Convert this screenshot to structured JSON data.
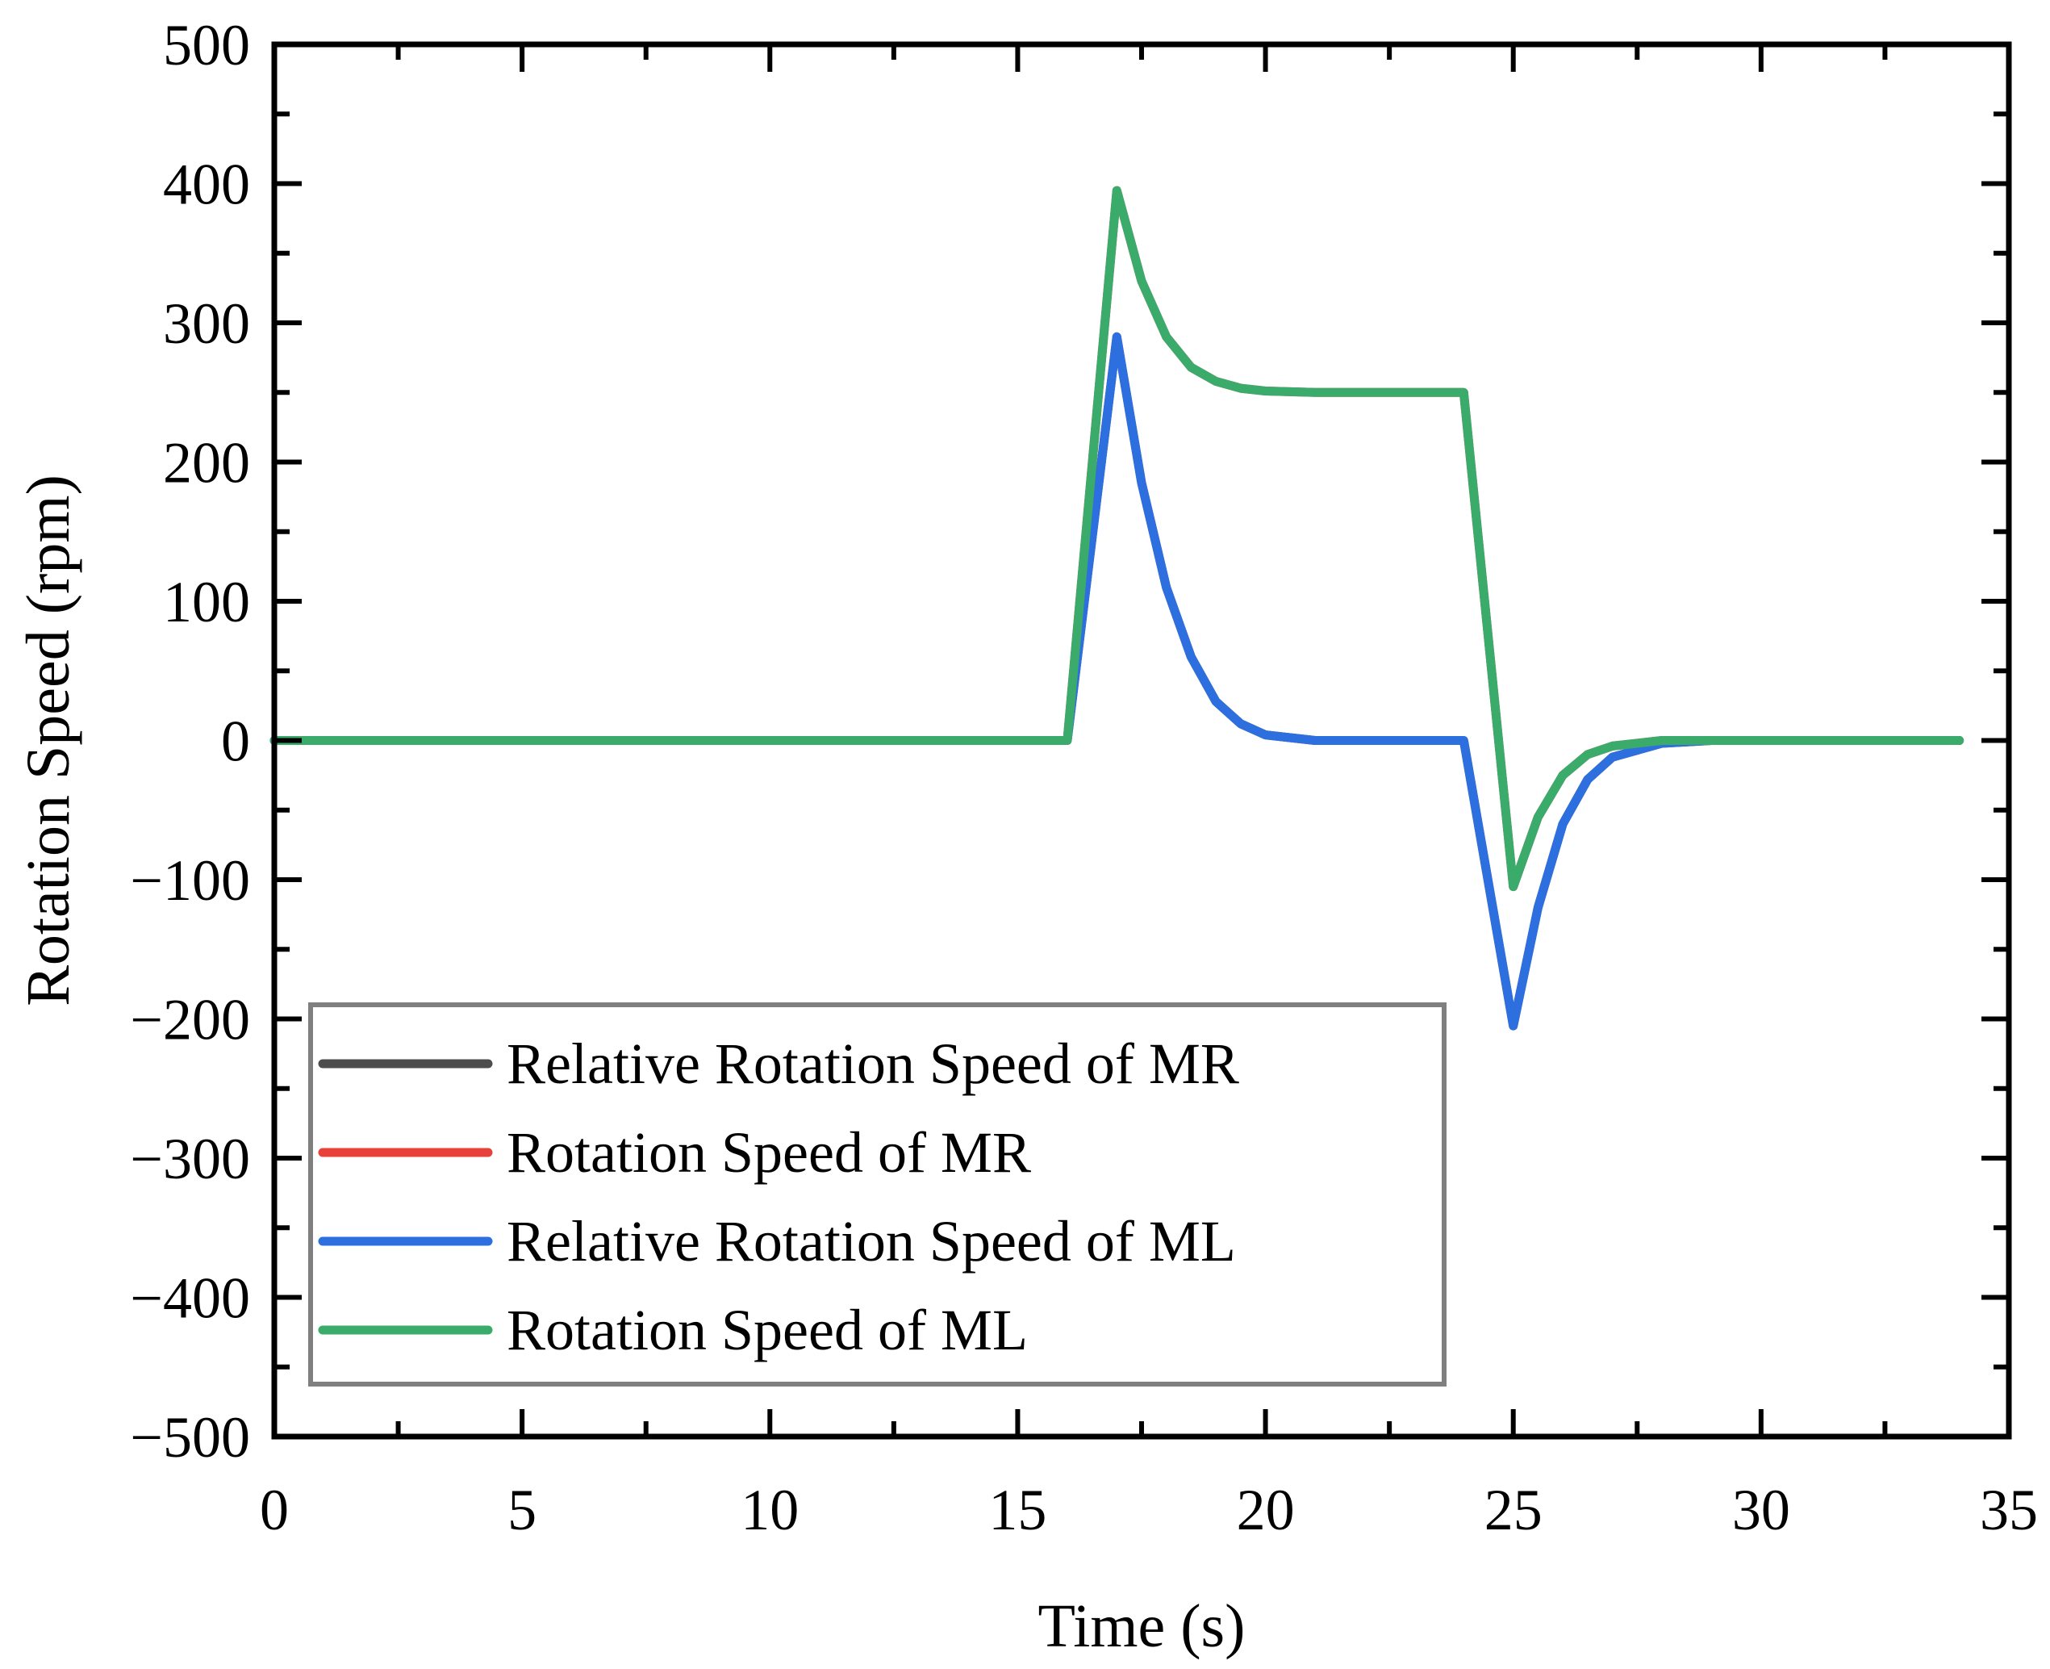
{
  "chart_data": {
    "type": "line",
    "title": "",
    "xlabel": "Time (s)",
    "ylabel": "Rotation Speed (rpm)",
    "xlim": [
      0,
      35
    ],
    "ylim": [
      -500,
      500
    ],
    "xticks": [
      0,
      5,
      10,
      15,
      20,
      25,
      30,
      35
    ],
    "xtick_labels": [
      "0",
      "5",
      "10",
      "15",
      "20",
      "25",
      "30",
      "35"
    ],
    "yticks": [
      500,
      400,
      300,
      200,
      100,
      0,
      -100,
      -200,
      -300,
      -400,
      -500
    ],
    "ytick_labels": [
      "500",
      "400",
      "300",
      "200",
      "100",
      "0",
      "−100",
      "−200",
      "−300",
      "−400",
      "−500"
    ],
    "grid": false,
    "legend_position": "bottom-left",
    "series": [
      {
        "name": "Relative Rotation Speed of MR",
        "color": "#4d4d4d",
        "x": [
          0,
          16,
          17,
          17.5,
          18,
          18.5,
          19,
          19.5,
          20,
          21,
          22,
          24,
          25,
          25.5,
          26,
          26.5,
          27,
          28,
          29,
          30,
          34
        ],
        "y": [
          0,
          0,
          290,
          185,
          110,
          60,
          28,
          12,
          4,
          0,
          0,
          0,
          -205,
          -120,
          -60,
          -28,
          -12,
          -2,
          0,
          0,
          0
        ]
      },
      {
        "name": "Rotation Speed of MR",
        "color": "#e8413c",
        "x": [
          0,
          16,
          17,
          17.5,
          18,
          18.5,
          19,
          19.5,
          20,
          21,
          22,
          24,
          25,
          25.5,
          26,
          26.5,
          27,
          28,
          29,
          30,
          34
        ],
        "y": [
          0,
          0,
          395,
          330,
          290,
          268,
          258,
          253,
          251,
          250,
          250,
          250,
          -105,
          -55,
          -25,
          -10,
          -4,
          0,
          0,
          0,
          0
        ]
      },
      {
        "name": "Relative Rotation Speed of ML",
        "color": "#2e6fe0",
        "x": [
          0,
          16,
          17,
          17.5,
          18,
          18.5,
          19,
          19.5,
          20,
          21,
          22,
          24,
          25,
          25.5,
          26,
          26.5,
          27,
          28,
          29,
          30,
          34
        ],
        "y": [
          0,
          0,
          290,
          185,
          110,
          60,
          28,
          12,
          4,
          0,
          0,
          0,
          -205,
          -120,
          -60,
          -28,
          -12,
          -2,
          0,
          0,
          0
        ]
      },
      {
        "name": "Rotation Speed of ML",
        "color": "#3aab6a",
        "x": [
          0,
          16,
          17,
          17.5,
          18,
          18.5,
          19,
          19.5,
          20,
          21,
          22,
          24,
          25,
          25.5,
          26,
          26.5,
          27,
          28,
          29,
          30,
          34
        ],
        "y": [
          0,
          0,
          395,
          330,
          290,
          268,
          258,
          253,
          251,
          250,
          250,
          250,
          -105,
          -55,
          -25,
          -10,
          -4,
          0,
          0,
          0,
          0
        ]
      }
    ]
  }
}
